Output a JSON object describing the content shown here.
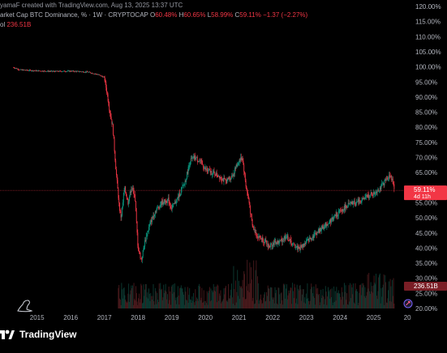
{
  "header": {
    "line1": "yamaF created with TradingView.com, Aug 13, 2025 13:37 UTC",
    "symbol": "arket Cap BTC Dominance, % · 1W · CRYPTOCAP",
    "ohlc": [
      {
        "key": "O",
        "value": "60.48%"
      },
      {
        "key": "H",
        "value": "60.65%"
      },
      {
        "key": "L",
        "value": "58.99%"
      },
      {
        "key": "C",
        "value": "59.11%"
      }
    ],
    "change": "−1.37 (−2.27%)",
    "vol_label": "ol",
    "vol_value": "236.51B"
  },
  "colors": {
    "background": "#000000",
    "up": "#089981",
    "down": "#f23645",
    "price_line": "#f23645",
    "axis_text": "#b2b5be",
    "volume_up": "#0d3b33",
    "volume_down": "#4a1a1d"
  },
  "price_badge": {
    "value": "59.11%",
    "countdown": "4d 11h"
  },
  "volume_badge": {
    "value": "236.51B"
  },
  "brand": {
    "name": "TradingView"
  },
  "icons": {
    "tv_logo": "tradingview-logo-icon",
    "watermark": "dino-icon",
    "replay": "replay-icon"
  },
  "chart_data": {
    "type": "line",
    "title": "Market Cap BTC Dominance, %",
    "interval": "1W",
    "x_ticks": [
      "2015",
      "2016",
      "2017",
      "2018",
      "2019",
      "2020",
      "2021",
      "2022",
      "2023",
      "2024",
      "2025",
      "20"
    ],
    "y_ticks": [
      "120.00%",
      "115.00%",
      "110.00%",
      "105.00%",
      "100.00%",
      "95.00%",
      "90.00%",
      "85.00%",
      "80.00%",
      "75.00%",
      "70.00%",
      "65.00%",
      "60.00%",
      "55.00%",
      "50.00%",
      "45.00%",
      "40.00%",
      "35.00%",
      "30.00%",
      "25.00%",
      "20.00%"
    ],
    "ylim": [
      20,
      120
    ],
    "xlim": [
      2013.9,
      2025.9
    ],
    "last_value": 59.11,
    "series": [
      {
        "name": "BTC Dominance",
        "x": [
          2014.3,
          2014.5,
          2015.0,
          2015.5,
          2016.0,
          2016.5,
          2016.8,
          2017.0,
          2017.1,
          2017.15,
          2017.25,
          2017.35,
          2017.45,
          2017.5,
          2017.6,
          2017.7,
          2017.8,
          2017.9,
          2018.0,
          2018.1,
          2018.2,
          2018.35,
          2018.5,
          2018.7,
          2018.9,
          2019.0,
          2019.2,
          2019.4,
          2019.55,
          2019.7,
          2019.9,
          2020.0,
          2020.2,
          2020.4,
          2020.6,
          2020.8,
          2021.0,
          2021.1,
          2021.2,
          2021.3,
          2021.4,
          2021.55,
          2021.7,
          2021.9,
          2022.0,
          2022.2,
          2022.4,
          2022.6,
          2022.8,
          2023.0,
          2023.2,
          2023.4,
          2023.6,
          2023.8,
          2024.0,
          2024.2,
          2024.4,
          2024.6,
          2024.8,
          2025.0,
          2025.2,
          2025.4,
          2025.5,
          2025.62
        ],
        "values": [
          99.8,
          99.0,
          98.7,
          98.5,
          98.6,
          98.3,
          97.5,
          96.5,
          90.0,
          86.0,
          80.0,
          65.0,
          53.0,
          50.0,
          60.0,
          55.0,
          60.0,
          58.0,
          40.0,
          36.0,
          42.0,
          48.0,
          52.0,
          55.0,
          56.0,
          53.0,
          57.0,
          62.0,
          69.0,
          70.0,
          68.0,
          66.0,
          65.0,
          64.0,
          62.0,
          64.0,
          69.0,
          70.0,
          61.0,
          55.0,
          47.0,
          44.0,
          43.0,
          40.5,
          41.5,
          42.0,
          44.0,
          41.0,
          40.0,
          42.0,
          44.0,
          46.0,
          48.0,
          50.0,
          52.0,
          54.0,
          55.0,
          55.5,
          57.0,
          58.0,
          60.0,
          63.0,
          64.5,
          59.11
        ]
      }
    ]
  }
}
